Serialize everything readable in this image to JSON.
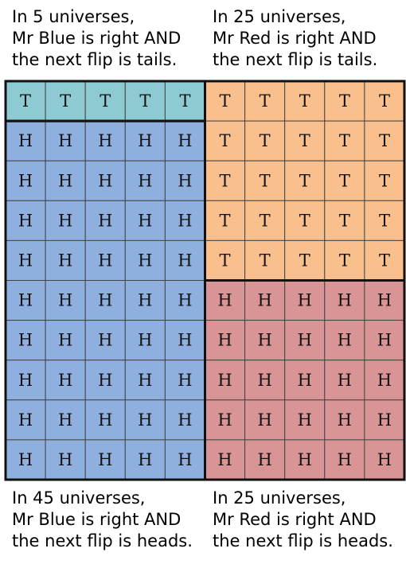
{
  "captions": {
    "top_left": [
      "In 5 universes,",
      "Mr Blue is right AND",
      "the next flip is tails."
    ],
    "top_right": [
      "In 25 universes,",
      "Mr Red is right AND",
      "the next flip is tails."
    ],
    "bottom_left": [
      "In 45 universes,",
      "Mr Blue is right AND",
      "the next flip is heads."
    ],
    "bottom_right": [
      "In 25 universes,",
      "Mr Red is right AND",
      "the next flip is heads."
    ]
  },
  "grid": {
    "rows": [
      [
        "T",
        "T",
        "T",
        "T",
        "T",
        "T",
        "T",
        "T",
        "T",
        "T"
      ],
      [
        "H",
        "H",
        "H",
        "H",
        "H",
        "T",
        "T",
        "T",
        "T",
        "T"
      ],
      [
        "H",
        "H",
        "H",
        "H",
        "H",
        "T",
        "T",
        "T",
        "T",
        "T"
      ],
      [
        "H",
        "H",
        "H",
        "H",
        "H",
        "T",
        "T",
        "T",
        "T",
        "T"
      ],
      [
        "H",
        "H",
        "H",
        "H",
        "H",
        "T",
        "T",
        "T",
        "T",
        "T"
      ],
      [
        "H",
        "H",
        "H",
        "H",
        "H",
        "H",
        "H",
        "H",
        "H",
        "H"
      ],
      [
        "H",
        "H",
        "H",
        "H",
        "H",
        "H",
        "H",
        "H",
        "H",
        "H"
      ],
      [
        "H",
        "H",
        "H",
        "H",
        "H",
        "H",
        "H",
        "H",
        "H",
        "H"
      ],
      [
        "H",
        "H",
        "H",
        "H",
        "H",
        "H",
        "H",
        "H",
        "H",
        "H"
      ],
      [
        "H",
        "H",
        "H",
        "H",
        "H",
        "H",
        "H",
        "H",
        "H",
        "H"
      ]
    ],
    "regions": [
      {
        "name": "blue-tails",
        "color": "#8ecad2"
      },
      {
        "name": "blue-heads",
        "color": "#8fb0df"
      },
      {
        "name": "red-tails",
        "color": "#f9c08e"
      },
      {
        "name": "red-heads",
        "color": "#d99595"
      }
    ]
  }
}
